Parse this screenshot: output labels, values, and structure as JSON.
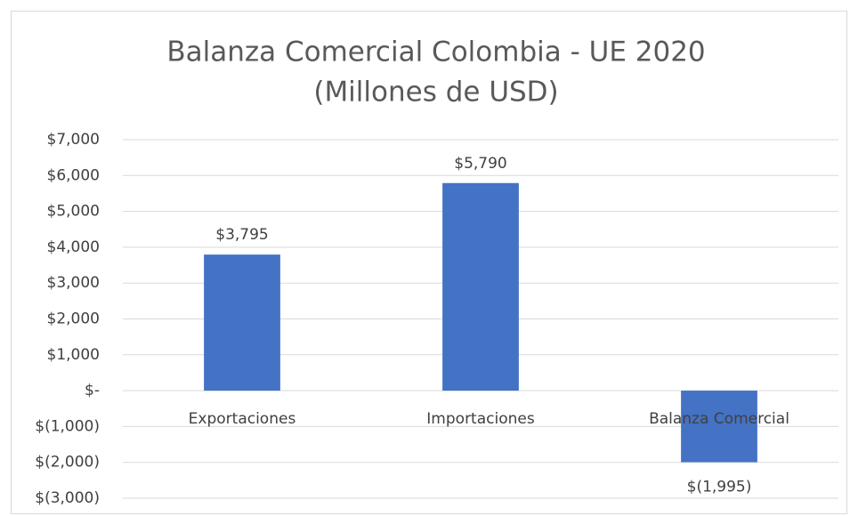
{
  "chart_data": {
    "type": "bar",
    "title": "Balanza Comercial Colombia - UE 2020",
    "subtitle": "(Millones de USD)",
    "categories": [
      "Exportaciones",
      "Importaciones",
      "Balanza Comercial"
    ],
    "values": [
      3795,
      5790,
      -1995
    ],
    "value_labels": [
      "$3,795",
      "$5,790",
      "$(1,995)"
    ],
    "color": "#4472c4",
    "ylim": [
      -3000,
      7000
    ],
    "yticks": [
      {
        "value": -3000,
        "label": "$(3,000)"
      },
      {
        "value": -2000,
        "label": "$(2,000)"
      },
      {
        "value": -1000,
        "label": "$(1,000)"
      },
      {
        "value": 0,
        "label": "$-"
      },
      {
        "value": 1000,
        "label": "$1,000"
      },
      {
        "value": 2000,
        "label": "$2,000"
      },
      {
        "value": 3000,
        "label": "$3,000"
      },
      {
        "value": 4000,
        "label": "$4,000"
      },
      {
        "value": 5000,
        "label": "$5,000"
      },
      {
        "value": 6000,
        "label": "$6,000"
      },
      {
        "value": 7000,
        "label": "$7,000"
      }
    ],
    "grid": true
  }
}
